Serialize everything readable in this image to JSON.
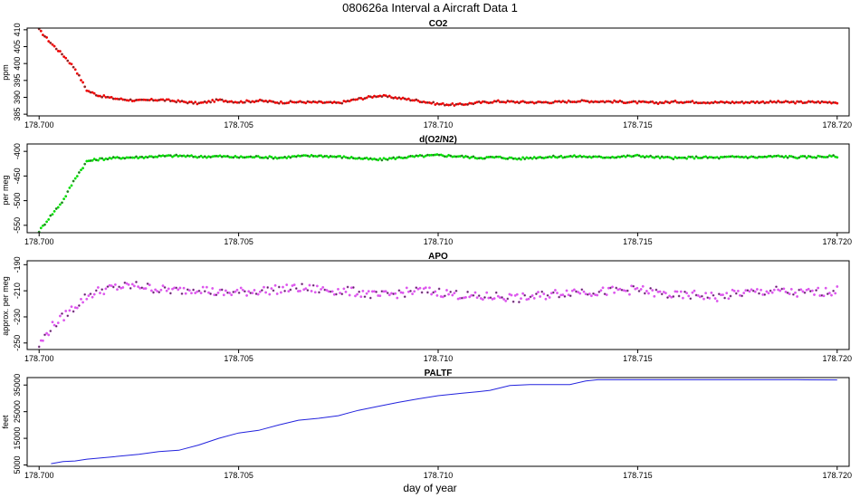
{
  "page": {
    "title": "080626a   Interval a Aircraft Data 1",
    "xlabel": "day of year"
  },
  "chart_data": [
    {
      "type": "scatter",
      "title": "CO2",
      "ylabel": "ppm",
      "x_ticks": [
        "178.700",
        "178.705",
        "178.710",
        "178.715",
        "178.720"
      ],
      "y_ticks": [
        "385",
        "390",
        "395",
        "400",
        "405",
        "410"
      ],
      "xlim": [
        178.6997,
        178.7203
      ],
      "ylim": [
        384.5,
        410.5
      ],
      "color": "#ee0000",
      "series": [
        {
          "name": "CO2",
          "x": [
            178.7,
            178.7003,
            178.7006,
            178.7009,
            178.7012,
            178.7015,
            178.7018,
            178.702,
            178.7025,
            178.703,
            178.7035,
            178.704,
            178.7045,
            178.705,
            178.7055,
            178.706,
            178.7065,
            178.707,
            178.7075,
            178.708,
            178.7085,
            178.709,
            178.7095,
            178.71,
            178.7105,
            178.711,
            178.7115,
            178.712,
            178.7125,
            178.713,
            178.7135,
            178.714,
            178.7145,
            178.715,
            178.7155,
            178.716,
            178.7165,
            178.717,
            178.7175,
            178.718,
            178.7185,
            178.719,
            178.7195,
            178.72
          ],
          "y": [
            410,
            406,
            402.5,
            398.5,
            392,
            390.5,
            389.8,
            389.5,
            389,
            389.3,
            388.8,
            388.2,
            389.2,
            388.6,
            389,
            388.5,
            388.6,
            388.5,
            388.3,
            389.5,
            390.5,
            389.8,
            389,
            388,
            387.8,
            388.4,
            388.8,
            388.6,
            388.5,
            388.6,
            388.9,
            388.8,
            388.7,
            388.5,
            388.4,
            388.7,
            388.6,
            388.5,
            388.5,
            388.6,
            388.6,
            388.5,
            388.6,
            388.5
          ]
        }
      ]
    },
    {
      "type": "scatter",
      "title": "d(O2/N2)",
      "ylabel": "per meg",
      "x_ticks": [
        "178.700",
        "178.705",
        "178.710",
        "178.715",
        "178.720"
      ],
      "y_ticks": [
        "-550",
        "-500",
        "-450",
        "-400"
      ],
      "xlim": [
        178.6997,
        178.7203
      ],
      "ylim": [
        -565,
        -385
      ],
      "color": "#00dd00",
      "series": [
        {
          "name": "d(O2/N2)",
          "x": [
            178.7,
            178.7003,
            178.7006,
            178.7009,
            178.7012,
            178.7015,
            178.7018,
            178.702,
            178.7025,
            178.703,
            178.7035,
            178.704,
            178.7045,
            178.705,
            178.7055,
            178.706,
            178.7065,
            178.707,
            178.7075,
            178.708,
            178.7085,
            178.709,
            178.7095,
            178.71,
            178.7105,
            178.711,
            178.7115,
            178.712,
            178.7125,
            178.713,
            178.7135,
            178.714,
            178.7145,
            178.715,
            178.7155,
            178.716,
            178.7165,
            178.717,
            178.7175,
            178.718,
            178.7185,
            178.719,
            178.7195,
            178.72
          ],
          "y": [
            -562,
            -530,
            -500,
            -455,
            -420,
            -416,
            -414,
            -413,
            -412,
            -410,
            -409,
            -411,
            -410,
            -412,
            -411,
            -413,
            -410,
            -409,
            -411,
            -414,
            -417,
            -413,
            -410,
            -408,
            -410,
            -413,
            -412,
            -415,
            -412,
            -411,
            -410,
            -412,
            -411,
            -409,
            -412,
            -414,
            -412,
            -413,
            -411,
            -412,
            -410,
            -412,
            -411,
            -410
          ]
        }
      ]
    },
    {
      "type": "scatter",
      "title": "APO",
      "ylabel": "approx. per meg",
      "x_ticks": [
        "178.700",
        "178.705",
        "178.710",
        "178.715",
        "178.720"
      ],
      "y_ticks": [
        "-250",
        "-230",
        "-210",
        "-190"
      ],
      "xlim": [
        178.6997,
        178.7203
      ],
      "ylim": [
        -255,
        -187
      ],
      "color": "#dd55ee",
      "series": [
        {
          "name": "APO",
          "x": [
            178.7,
            178.7003,
            178.7006,
            178.7009,
            178.7012,
            178.7015,
            178.7018,
            178.702,
            178.7025,
            178.703,
            178.7035,
            178.704,
            178.7045,
            178.705,
            178.7055,
            178.706,
            178.7065,
            178.707,
            178.7075,
            178.708,
            178.7085,
            178.709,
            178.7095,
            178.71,
            178.7105,
            178.711,
            178.7115,
            178.712,
            178.7125,
            178.713,
            178.7135,
            178.714,
            178.7145,
            178.715,
            178.7155,
            178.716,
            178.7165,
            178.717,
            178.7175,
            178.718,
            178.7185,
            178.719,
            178.7195,
            178.72
          ],
          "y": [
            -252,
            -238,
            -230,
            -222,
            -214,
            -210,
            -208,
            -207,
            -206,
            -209,
            -210,
            -208,
            -212,
            -211,
            -210,
            -209,
            -208,
            -209,
            -210,
            -211,
            -214,
            -212,
            -210,
            -211,
            -213,
            -215,
            -214,
            -216,
            -214,
            -212,
            -210,
            -211,
            -210,
            -209,
            -212,
            -214,
            -213,
            -215,
            -212,
            -211,
            -210,
            -212,
            -211,
            -210
          ]
        }
      ]
    },
    {
      "type": "line",
      "title": "PALTF",
      "ylabel": "feet",
      "x_ticks": [
        "178.700",
        "178.705",
        "178.710",
        "178.715",
        "178.720"
      ],
      "y_ticks": [
        "5000",
        "15000",
        "25000",
        "35000"
      ],
      "xlim": [
        178.6997,
        178.7203
      ],
      "ylim": [
        4500,
        37800
      ],
      "color": "#2222dd",
      "series": [
        {
          "name": "PALTF",
          "x": [
            178.7003,
            178.7006,
            178.7009,
            178.7012,
            178.7018,
            178.7025,
            178.703,
            178.7035,
            178.704,
            178.7045,
            178.705,
            178.7055,
            178.706,
            178.7065,
            178.707,
            178.7075,
            178.708,
            178.7085,
            178.709,
            178.7095,
            178.71,
            178.7105,
            178.711,
            178.7113,
            178.7118,
            178.7123,
            178.7128,
            178.7133,
            178.7137,
            178.714,
            178.7145,
            178.715,
            178.716,
            178.717,
            178.718,
            178.719,
            178.72
          ],
          "y": [
            5500,
            6300,
            6500,
            7200,
            8000,
            9000,
            10000,
            10500,
            12500,
            15000,
            17000,
            18000,
            20000,
            21800,
            22500,
            23500,
            25500,
            27000,
            28500,
            29800,
            31000,
            31800,
            32500,
            33000,
            34800,
            35200,
            35200,
            35200,
            36500,
            37000,
            37000,
            37000,
            37000,
            37000,
            37000,
            37000,
            36900
          ]
        }
      ]
    }
  ]
}
